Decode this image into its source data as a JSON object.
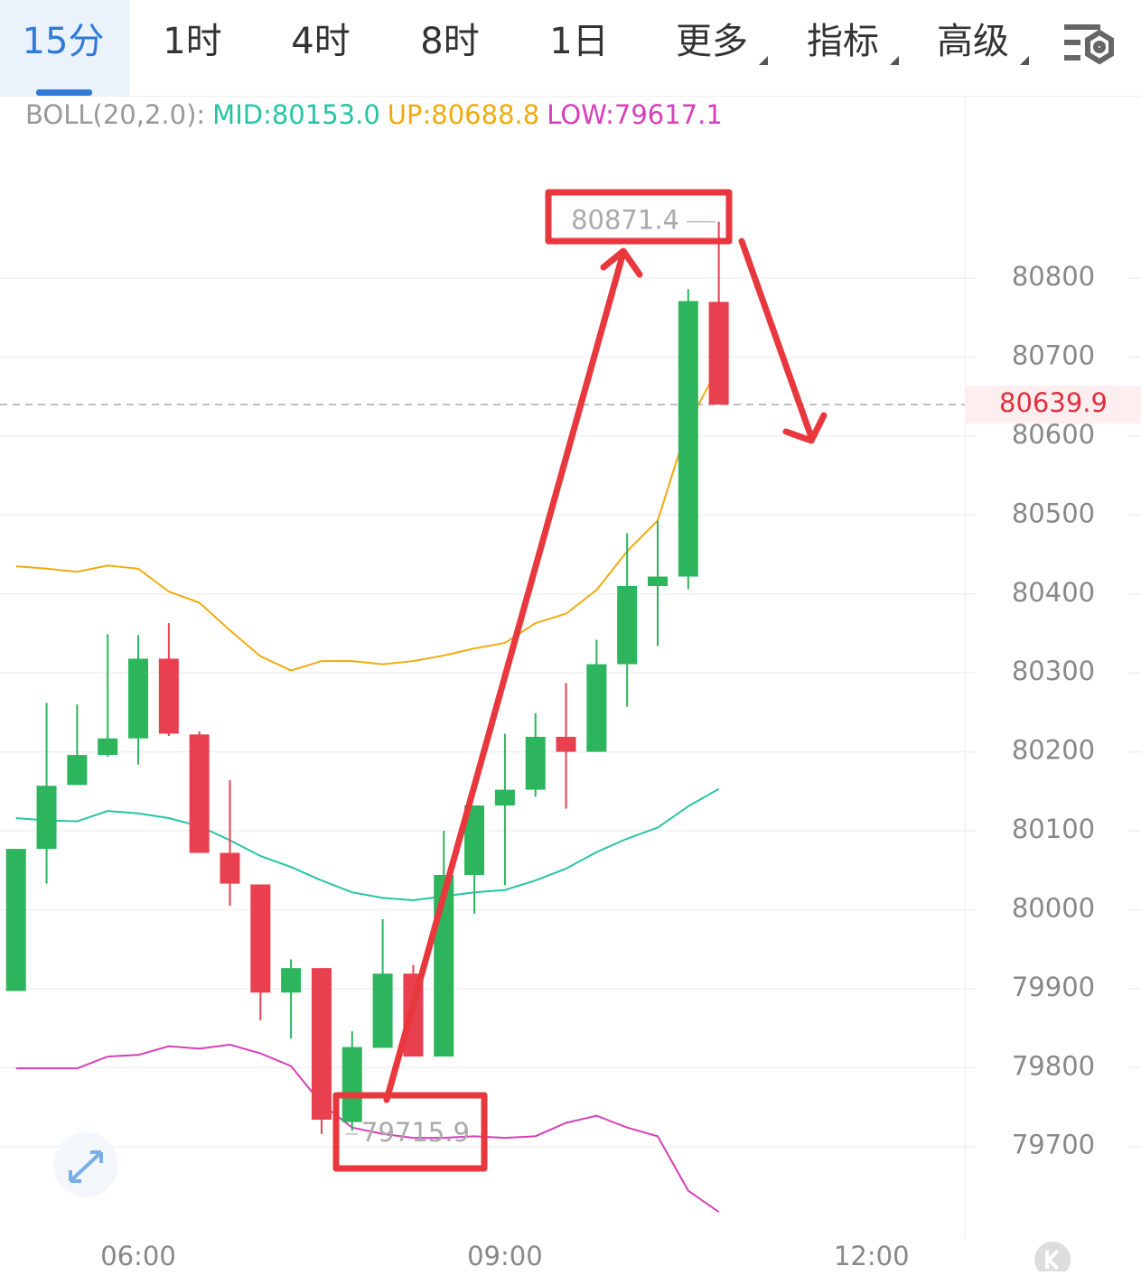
{
  "tabs": [
    "15分",
    "1时",
    "4时",
    "8时",
    "1日",
    "更多",
    "指标",
    "高级"
  ],
  "chart_data": {
    "type": "candlestick",
    "indicator": "BOLL(20,2.0):",
    "x": [
      5,
      5.25,
      5.5,
      5.75,
      6,
      6.25,
      6.5,
      6.75,
      7,
      7.25,
      7.5,
      7.75,
      8,
      8.25,
      8.5,
      8.75,
      9,
      9.25,
      9.5,
      9.75,
      10,
      10.25,
      10.5,
      10.75
    ],
    "open": [
      79897,
      80077,
      80158,
      80196,
      80217,
      80318,
      80222,
      80072,
      80032,
      79895,
      79926,
      79731,
      79825,
      79919,
      79814,
      80044,
      80132,
      80152,
      80219,
      80200,
      80311,
      80410,
      80422,
      80770
    ],
    "high": [
      80077,
      80262,
      80260,
      80349,
      80348,
      80363,
      80226,
      80164,
      80032,
      79937,
      79926,
      79846,
      79988,
      79930,
      80100,
      80132,
      80223,
      80249,
      80287,
      80342,
      80477,
      80493,
      80786,
      80871.4
    ],
    "low": [
      79897,
      80033,
      80158,
      80194,
      80184,
      80220,
      80072,
      80005,
      79860,
      79837,
      79715.9,
      79720,
      79825,
      79814,
      79814,
      79995,
      80031,
      80143,
      80128,
      80200,
      80257,
      80334,
      80406,
      80639.9
    ],
    "close": [
      80077,
      80157,
      80196,
      80217,
      80318,
      80223,
      80072,
      80033,
      79895,
      79926,
      79734,
      79826,
      79919,
      79814,
      80044,
      80132,
      80152,
      80219,
      80200,
      80311,
      80410,
      80422,
      80771,
      80639.9
    ],
    "up_color": "#2db55d",
    "down_color": "#e8404f",
    "series": [
      {
        "name": "MID:80153.0",
        "color": "#26c4a4",
        "values": [
          80116,
          80113,
          80112,
          80125,
          80122,
          80116,
          80106,
          80088,
          80068,
          80054,
          80037,
          80022,
          80015,
          80012,
          80017,
          80022,
          80025,
          80037,
          80052,
          80073,
          80090,
          80104,
          80131,
          80153.0
        ]
      },
      {
        "name": "UP:80688.8",
        "color": "#f0aa10",
        "values": [
          80435,
          80432,
          80428,
          80436,
          80432,
          80403,
          80389,
          80354,
          80321,
          80303,
          80315,
          80315,
          80311,
          80315,
          80322,
          80331,
          80338,
          80363,
          80375,
          80405,
          80454,
          80493,
          80615,
          80688.8
        ]
      },
      {
        "name": "LOW:79617.1",
        "color": "#d63fb8",
        "values": [
          79799,
          79799,
          79799,
          79814,
          79816,
          79827,
          79824,
          79829,
          79818,
          79802,
          79754,
          79724,
          79716,
          79711,
          79711,
          79713,
          79711,
          79713,
          79730,
          79739,
          79724,
          79713,
          79644,
          79617.1
        ]
      }
    ],
    "last_price": 80639.9,
    "annotations": [
      {
        "value": 80871.4,
        "label": "80871.4"
      },
      {
        "value": 79715.9,
        "label": "79715.9"
      }
    ],
    "xlim": [
      4.869,
      12.763
    ],
    "xticks": [
      {
        "value": 6,
        "label": "06:00"
      },
      {
        "value": 9,
        "label": "09:00"
      },
      {
        "value": 12,
        "label": "12:00"
      }
    ],
    "ylim": [
      79583,
      81030
    ],
    "yticks": [
      79700,
      79800,
      79900,
      80000,
      80100,
      80200,
      80300,
      80400,
      80500,
      80600,
      80700,
      80800
    ],
    "grid": true
  }
}
